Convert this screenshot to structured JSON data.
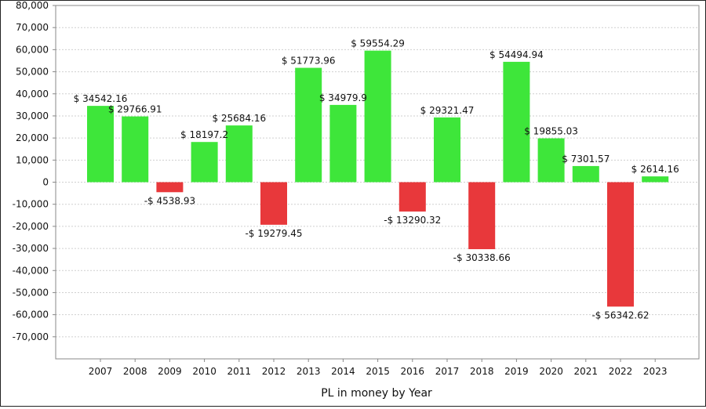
{
  "chart_data": {
    "type": "bar",
    "xlabel": "PL in money by Year",
    "ylim": [
      -80000,
      80000
    ],
    "y_ticks": [
      80000,
      70000,
      60000,
      50000,
      40000,
      30000,
      20000,
      10000,
      0,
      -10000,
      -20000,
      -30000,
      -40000,
      -50000,
      -60000,
      -70000
    ],
    "y_tick_labels": [
      "80,000",
      "70,000",
      "60,000",
      "50,000",
      "40,000",
      "30,000",
      "20,000",
      "10,000",
      "0",
      "-10,000",
      "-20,000",
      "-30,000",
      "-40,000",
      "-50,000",
      "-60,000",
      "-70,000"
    ],
    "grid": true,
    "categories": [
      "2007",
      "2008",
      "2009",
      "2010",
      "2011",
      "2012",
      "2013",
      "2014",
      "2015",
      "2016",
      "2017",
      "2018",
      "2019",
      "2020",
      "2021",
      "2022",
      "2023"
    ],
    "values": [
      34542.16,
      29766.91,
      -4538.93,
      18197.2,
      25684.16,
      -19279.45,
      51773.96,
      34979.9,
      59554.29,
      -13290.32,
      29321.47,
      -30338.66,
      54494.94,
      19855.03,
      7301.57,
      -56342.62,
      2614.16
    ],
    "data_labels": [
      "$ 34542.16",
      "$ 29766.91",
      "-$ 4538.93",
      "$ 18197.2",
      "$ 25684.16",
      "-$ 19279.45",
      "$ 51773.96",
      "$ 34979.9",
      "$ 59554.29",
      "-$ 13290.32",
      "$ 29321.47",
      "-$ 30338.66",
      "$ 54494.94",
      "$ 19855.03",
      "$ 7301.57",
      "-$ 56342.62",
      "$ 2614.16"
    ],
    "colors": {
      "positive": "#3ee63a",
      "negative": "#e8383b",
      "grid": "#cfcfcf",
      "axis": "#888888"
    }
  }
}
